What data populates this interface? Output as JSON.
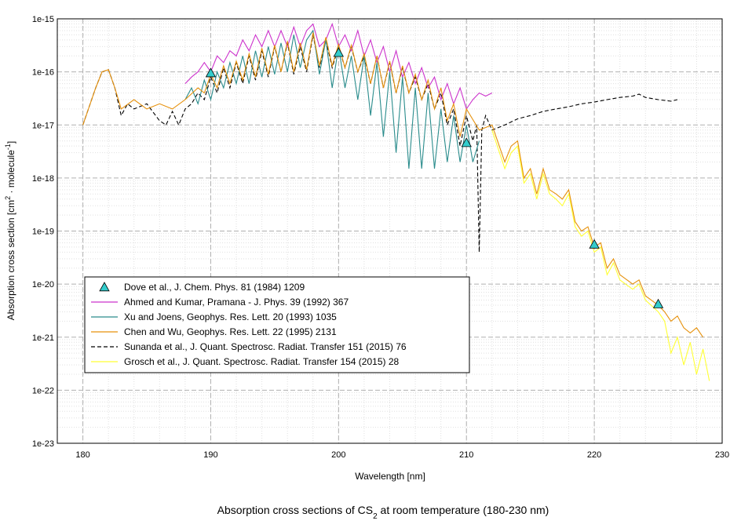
{
  "chart_data": {
    "type": "line",
    "title": [
      "Absorption cross sections of CS",
      "2",
      " at room temperature (180-230 nm)"
    ],
    "xlabel": "Wavelength [nm]",
    "ylabel": [
      "Absorption cross section [cm",
      "2",
      " · molecule",
      "-1",
      "]"
    ],
    "xlim": [
      178,
      230
    ],
    "ylim": [
      1e-23,
      1e-15
    ],
    "xticks": [
      180,
      190,
      200,
      210,
      220,
      230
    ],
    "yticks": [
      {
        "value": 1e-23,
        "label": "1e-23"
      },
      {
        "value": 1e-22,
        "label": "1e-22"
      },
      {
        "value": 1e-21,
        "label": "1e-21"
      },
      {
        "value": 1e-20,
        "label": "1e-20"
      },
      {
        "value": 1e-19,
        "label": "1e-19"
      },
      {
        "value": 1e-18,
        "label": "1e-18"
      },
      {
        "value": 1e-17,
        "label": "1e-17"
      },
      {
        "value": 1e-16,
        "label": "1e-16"
      },
      {
        "value": 1e-15,
        "label": "1e-15"
      }
    ],
    "yscale": "log",
    "grid": true,
    "legend": "center left",
    "series": [
      {
        "name": "Dove et al., J. Chem. Phys. 81 (1984) 1209",
        "color": "#33cccc",
        "marker": "triangle",
        "x": [
          190,
          200,
          210,
          220,
          225
        ],
        "values": [
          9.5e-17,
          2.3e-16,
          4.6e-18,
          5.6e-20,
          4.2e-21
        ]
      },
      {
        "name": "Ahmed and Kumar, Pramana - J. Phys. 39 (1992) 367",
        "color": "#cc33cc",
        "x": [
          188,
          188.5,
          189,
          189.5,
          190,
          190.5,
          191,
          191.5,
          192,
          192.5,
          193,
          193.5,
          194,
          194.5,
          195,
          195.5,
          196,
          196.5,
          197,
          197.5,
          198,
          198.5,
          199,
          199.5,
          200,
          200.5,
          201,
          201.5,
          202,
          202.5,
          203,
          203.5,
          204,
          204.5,
          205,
          205.5,
          206,
          206.5,
          207,
          207.5,
          208,
          208.5,
          209,
          209.5,
          210,
          210.5,
          211,
          211.5,
          212
        ],
        "values": [
          6e-17,
          8e-17,
          1e-16,
          1.5e-16,
          1e-16,
          2e-16,
          1.5e-16,
          2.5e-16,
          2e-16,
          4e-16,
          2.5e-16,
          5e-16,
          3e-16,
          6e-16,
          3e-16,
          6e-16,
          3e-16,
          7e-16,
          3e-16,
          6e-16,
          8e-16,
          3e-16,
          4e-16,
          8e-16,
          3e-16,
          5e-16,
          2.5e-16,
          6e-16,
          2e-16,
          4e-16,
          1.5e-16,
          3e-16,
          1e-16,
          2.5e-16,
          8e-17,
          1.5e-16,
          6e-17,
          1.2e-16,
          5e-17,
          8e-17,
          3e-17,
          6e-17,
          2.5e-17,
          5e-17,
          2e-17,
          3e-17,
          4e-17,
          3.5e-17,
          4e-17
        ]
      },
      {
        "name": "Xu and Joens, Geophys. Res. Lett. 20 (1993) 1035",
        "color": "#2a8c8c",
        "x": [
          188,
          188.5,
          189,
          189.5,
          190,
          190.5,
          191,
          191.5,
          192,
          192.5,
          193,
          193.5,
          194,
          194.5,
          195,
          195.5,
          196,
          196.5,
          197,
          197.5,
          198,
          198.5,
          199,
          199.5,
          200,
          200.5,
          201,
          201.5,
          202,
          202.5,
          203,
          203.5,
          204,
          204.5,
          205,
          205.5,
          206,
          206.5,
          207,
          207.5,
          208,
          208.5,
          209,
          209.5,
          210,
          210.5,
          211
        ],
        "values": [
          3e-17,
          5e-17,
          2.5e-17,
          7e-17,
          3e-17,
          1e-16,
          5e-17,
          1.5e-16,
          6e-17,
          2e-16,
          6e-17,
          2.5e-16,
          8e-17,
          3e-16,
          9e-17,
          3.5e-16,
          1e-16,
          5e-16,
          1.2e-16,
          4e-16,
          6e-16,
          9e-17,
          4e-16,
          5e-17,
          3e-16,
          5e-17,
          2e-16,
          3e-17,
          2e-16,
          1.5e-17,
          1.5e-16,
          6e-18,
          1e-16,
          3e-18,
          8e-17,
          1.5e-18,
          5e-17,
          1.5e-18,
          4e-17,
          1.5e-18,
          2e-17,
          2e-18,
          1.5e-17,
          2e-18,
          1e-17,
          2e-18,
          5e-18
        ]
      },
      {
        "name": "Chen and Wu, Geophys. Res. Lett. 22 (1995) 2131",
        "color": "#e6900a",
        "x": [
          180,
          181,
          181.5,
          182,
          182.5,
          183,
          184,
          185,
          186,
          187,
          188,
          189,
          189.5,
          190,
          190.5,
          191,
          191.5,
          192,
          192.5,
          193,
          193.5,
          194,
          194.5,
          195,
          195.5,
          196,
          196.5,
          197,
          197.5,
          198,
          198.5,
          199,
          199.5,
          200,
          200.5,
          201,
          201.5,
          202,
          202.5,
          203,
          203.5,
          204,
          204.5,
          205,
          205.5,
          206,
          206.5,
          207,
          207.5,
          208,
          208.5,
          209,
          209.5,
          210,
          211,
          212,
          213,
          213.5,
          214,
          214.5,
          215,
          215.5,
          216,
          216.5,
          217,
          217.5,
          218,
          218.5,
          219,
          219.5,
          220,
          220.5,
          221,
          221.5,
          222,
          223,
          223.5,
          224,
          225,
          225.5,
          226,
          226.5,
          227,
          227.5,
          228,
          228.5
        ],
        "values": [
          1e-17,
          5e-17,
          1e-16,
          1.1e-16,
          5e-17,
          2e-17,
          3e-17,
          2e-17,
          2.5e-17,
          2e-17,
          3e-17,
          5e-17,
          4e-17,
          9e-17,
          5e-17,
          1.3e-16,
          6e-17,
          1.6e-16,
          7e-17,
          2.2e-16,
          8e-17,
          2.8e-16,
          9e-17,
          3.2e-16,
          1e-16,
          3.8e-16,
          1e-16,
          3.5e-16,
          1.1e-16,
          5.5e-16,
          1.3e-16,
          4.5e-16,
          1.3e-16,
          3.3e-16,
          1.2e-16,
          3.2e-16,
          1e-16,
          2.2e-16,
          6e-17,
          2e-16,
          5e-17,
          1.6e-16,
          4e-17,
          1.3e-16,
          4e-17,
          9e-17,
          3e-17,
          7e-17,
          2e-17,
          5e-17,
          1.2e-17,
          2.5e-17,
          6e-18,
          2e-17,
          8e-18,
          1e-17,
          2e-18,
          4e-18,
          5e-18,
          1e-18,
          1.5e-18,
          5e-19,
          1.5e-18,
          6e-19,
          5e-19,
          4e-19,
          6e-19,
          1.5e-19,
          1e-19,
          1.2e-19,
          5e-20,
          6e-20,
          2e-20,
          3e-20,
          1.5e-20,
          1e-20,
          1.2e-20,
          6e-21,
          4e-21,
          3e-21,
          2e-21,
          2.5e-21,
          1.5e-21,
          1.2e-21,
          1.5e-21,
          1e-21
        ]
      },
      {
        "name": "Sunanda et al., J. Quant. Spectrosc. Radiat. Transfer 151 (2015) 76",
        "color": "#000000",
        "dash": true,
        "x": [
          180,
          181,
          181.5,
          182,
          182.5,
          183,
          183.5,
          184,
          185,
          186,
          186.5,
          187,
          187.5,
          188,
          188.5,
          189,
          189.5,
          190,
          190.5,
          191,
          191.5,
          192,
          192.5,
          193,
          193.5,
          194,
          194.5,
          195,
          195.5,
          196,
          196.5,
          197,
          197.5,
          198,
          198.5,
          199,
          199.5,
          200,
          200.5,
          201,
          201.5,
          202,
          202.5,
          203,
          203.5,
          204,
          204.5,
          205,
          205.5,
          206,
          206.5,
          207,
          207.5,
          208,
          208.5,
          209,
          209.5,
          210,
          210.5,
          210.8,
          211,
          211.2,
          211.5,
          212,
          213,
          214,
          215,
          216,
          217,
          218,
          219,
          220,
          221,
          222,
          223,
          223.5,
          224,
          225,
          226,
          226.5
        ],
        "values": [
          1e-17,
          5e-17,
          1e-16,
          1.1e-16,
          5e-17,
          1.5e-17,
          2.5e-17,
          2e-17,
          2.5e-17,
          1.2e-17,
          1e-17,
          1.8e-17,
          1e-17,
          2e-17,
          2.5e-17,
          4e-17,
          3e-17,
          8e-17,
          4e-17,
          1.2e-16,
          5e-17,
          1.5e-16,
          6e-17,
          2e-16,
          7e-17,
          2.5e-16,
          8e-17,
          3e-16,
          1e-16,
          3.5e-16,
          9e-17,
          3e-16,
          1e-16,
          5e-16,
          1.2e-16,
          4e-16,
          1.2e-16,
          3e-16,
          1.2e-16,
          3e-16,
          1e-16,
          2e-16,
          6e-17,
          2e-16,
          5e-17,
          1.5e-16,
          4e-17,
          1.2e-16,
          4e-17,
          8e-17,
          3e-17,
          6e-17,
          2e-17,
          4e-17,
          1e-17,
          2e-17,
          4e-18,
          1.5e-17,
          5e-18,
          1e-17,
          4e-20,
          8e-18,
          1.5e-17,
          8e-18,
          1e-17,
          1.3e-17,
          1.5e-17,
          1.8e-17,
          2e-17,
          2.2e-17,
          2.5e-17,
          2.7e-17,
          3e-17,
          3.3e-17,
          3.5e-17,
          3.8e-17,
          3.3e-17,
          3e-17,
          2.8e-17,
          3e-17
        ]
      },
      {
        "name": "Grosch et al., J. Quant. Spectrosc. Radiat. Transfer 154 (2015) 28",
        "color": "#ffff33",
        "x": [
          212,
          213,
          213.5,
          214,
          214.5,
          215,
          215.5,
          216,
          216.5,
          217,
          217.5,
          218,
          218.5,
          219,
          219.5,
          220,
          220.5,
          221,
          221.5,
          222,
          223,
          223.5,
          224,
          225,
          225.5,
          226,
          226.5,
          227,
          227.5,
          228,
          228.5,
          229
        ],
        "values": [
          8e-18,
          1.5e-18,
          3e-18,
          4e-18,
          8e-19,
          1.2e-18,
          4e-19,
          1.2e-18,
          5e-19,
          4e-19,
          3e-19,
          5e-19,
          1.2e-19,
          8e-20,
          1e-19,
          4e-20,
          5e-20,
          1.5e-20,
          2.5e-20,
          1.2e-20,
          8e-21,
          1e-20,
          5e-21,
          3e-21,
          2e-21,
          5e-22,
          1e-21,
          3e-22,
          8e-22,
          2e-22,
          6e-22,
          1.5e-22
        ]
      }
    ]
  }
}
